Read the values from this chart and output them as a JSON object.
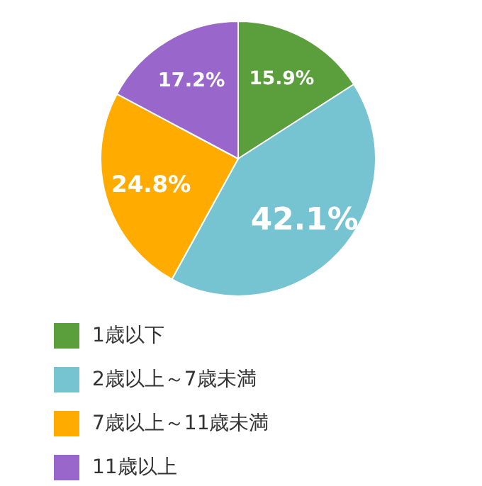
{
  "chart_data": {
    "type": "pie",
    "categories": [
      "1歳以下",
      "2歳以上～7歳未満",
      "7歳以上～11歳未満",
      "11歳以上"
    ],
    "values": [
      15.9,
      42.1,
      24.8,
      17.2
    ],
    "colors": [
      "#5b9e3c",
      "#76c3d1",
      "#ffab00",
      "#9966cc"
    ],
    "value_labels": [
      "15.9%",
      "42.1%",
      "24.8%",
      "17.2%"
    ],
    "legend": "bottom"
  }
}
